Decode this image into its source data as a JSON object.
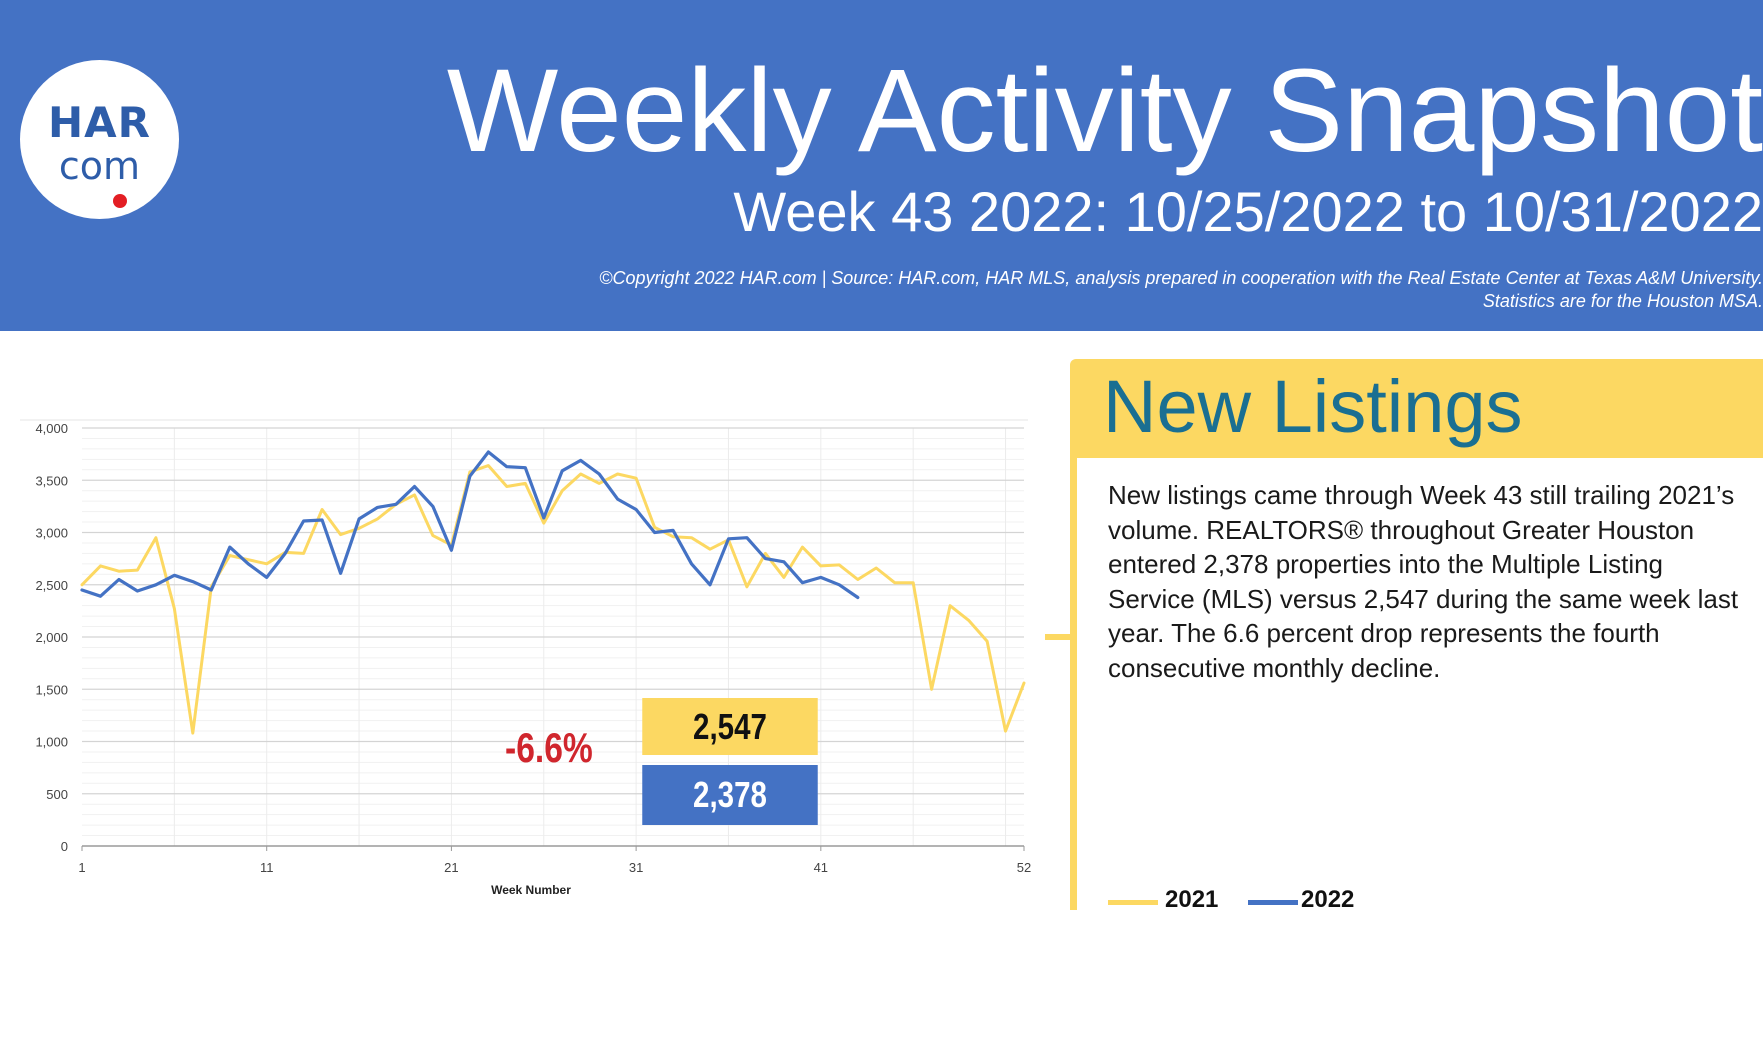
{
  "header": {
    "logo_top": "HAR",
    "logo_bottom": "com",
    "title": "Weekly Activity Snapshot",
    "subtitle": "Week 43 2022: 10/25/2022 to 10/31/2022",
    "copyright_line1": "©Copyright 2022 HAR.com  |  Source: HAR.com, HAR MLS, analysis prepared in cooperation with the Real Estate Center at Texas A&M University.",
    "copyright_line2": "Statistics are for the Houston MSA.",
    "background_color": "#4472c4"
  },
  "panel": {
    "title": "New Listings",
    "body": "New listings came through Week 43 still trailing 2021’s volume. REALTORS® throughout Greater Houston entered 2,378 properties into the Multiple Listing Service (MLS) versus 2,547 during the same week last year. The 6.6 percent drop represents the fourth consecutive monthly decline.",
    "accent_color": "#fcd862",
    "title_color": "#1a6f92"
  },
  "callout": {
    "value_2021": "2,547",
    "value_2022": "2,378",
    "change": "-6.6%",
    "change_color": "#d0262d"
  },
  "chart_data": {
    "type": "line",
    "xlabel": "Week Number",
    "ylabel": "",
    "xlim": [
      1,
      52
    ],
    "ylim": [
      0,
      4000
    ],
    "x_ticks": [
      1,
      11,
      21,
      31,
      41,
      52
    ],
    "y_ticks": [
      0,
      500,
      1000,
      1500,
      2000,
      2500,
      3000,
      3500,
      4000
    ],
    "y_tick_labels": [
      "0",
      "500",
      "1,000",
      "1,500",
      "2,000",
      "2,500",
      "3,000",
      "3,500",
      "4,000"
    ],
    "grid": true,
    "legend_position": "bottom-right",
    "series": [
      {
        "name": "2021",
        "color": "#fcd862",
        "x": [
          1,
          2,
          3,
          4,
          5,
          6,
          7,
          8,
          9,
          10,
          11,
          12,
          13,
          14,
          15,
          16,
          17,
          18,
          19,
          20,
          21,
          22,
          23,
          24,
          25,
          26,
          27,
          28,
          29,
          30,
          31,
          32,
          33,
          34,
          35,
          36,
          37,
          38,
          39,
          40,
          41,
          42,
          43,
          44,
          45,
          46,
          47,
          48,
          49,
          50,
          51,
          52
        ],
        "values": [
          2500,
          2680,
          2630,
          2640,
          2950,
          2270,
          1080,
          2480,
          2780,
          2740,
          2700,
          2810,
          2800,
          3220,
          2980,
          3040,
          3130,
          3270,
          3360,
          2970,
          2880,
          3580,
          3640,
          3440,
          3470,
          3090,
          3400,
          3560,
          3470,
          3560,
          3520,
          3050,
          2960,
          2950,
          2840,
          2930,
          2480,
          2800,
          2570,
          2860,
          2680,
          2690,
          2550,
          2660,
          2520,
          2520,
          1500,
          2300,
          2160,
          1960,
          1100,
          1560
        ]
      },
      {
        "name": "2022",
        "color": "#4472c4",
        "x": [
          1,
          2,
          3,
          4,
          5,
          6,
          7,
          8,
          9,
          10,
          11,
          12,
          13,
          14,
          15,
          16,
          17,
          18,
          19,
          20,
          21,
          22,
          23,
          24,
          25,
          26,
          27,
          28,
          29,
          30,
          31,
          32,
          33,
          34,
          35,
          36,
          37,
          38,
          39,
          40,
          41,
          42,
          43
        ],
        "values": [
          2450,
          2390,
          2550,
          2440,
          2500,
          2590,
          2530,
          2450,
          2860,
          2700,
          2570,
          2800,
          3110,
          3120,
          2610,
          3130,
          3240,
          3270,
          3440,
          3250,
          2830,
          3540,
          3770,
          3630,
          3620,
          3140,
          3590,
          3690,
          3560,
          3320,
          3220,
          3000,
          3020,
          2700,
          2500,
          2940,
          2950,
          2750,
          2720,
          2520,
          2570,
          2500,
          2378
        ]
      }
    ]
  }
}
